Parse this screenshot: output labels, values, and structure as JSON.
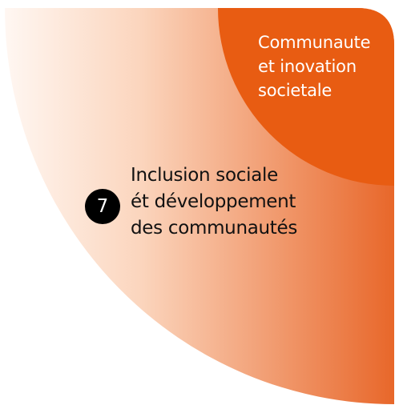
{
  "colors": {
    "accent": "#E85C12",
    "gradient_light": "#FDEDE3",
    "gradient_dark": "#E86E2B",
    "badge_bg": "#000000"
  },
  "inner_segment": {
    "lines": [
      "Communaute",
      "et inovation",
      "societale"
    ]
  },
  "main_segment": {
    "number": "7",
    "lines": [
      "Inclusion sociale",
      "ét développement",
      "des communautés"
    ]
  }
}
